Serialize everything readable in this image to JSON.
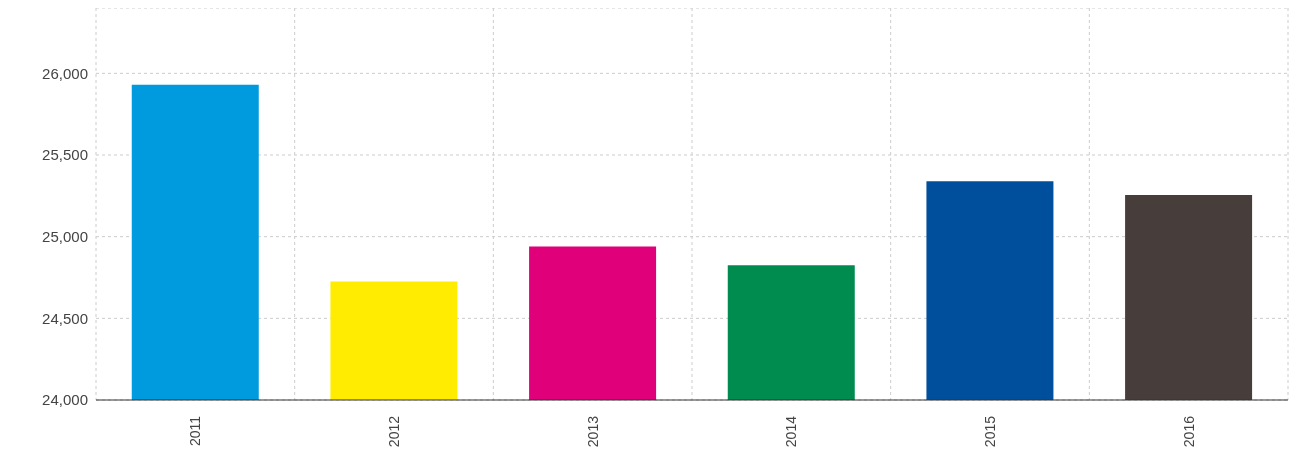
{
  "chart_data": {
    "type": "bar",
    "categories": [
      "2011",
      "2012",
      "2013",
      "2014",
      "2015",
      "2016"
    ],
    "values": [
      25930,
      24725,
      24940,
      24825,
      25340,
      25255
    ],
    "colors": [
      "#009ade",
      "#ffec00",
      "#e0007a",
      "#008c4f",
      "#004f9c",
      "#473d3b"
    ],
    "ylim": [
      24000,
      26400
    ],
    "yticks": [
      {
        "value": 24000,
        "label": "24,000"
      },
      {
        "value": 24500,
        "label": "24,500"
      },
      {
        "value": 25000,
        "label": "25,000"
      },
      {
        "value": 25500,
        "label": "25,500"
      },
      {
        "value": 26000,
        "label": "26,000"
      }
    ],
    "grid": true
  }
}
